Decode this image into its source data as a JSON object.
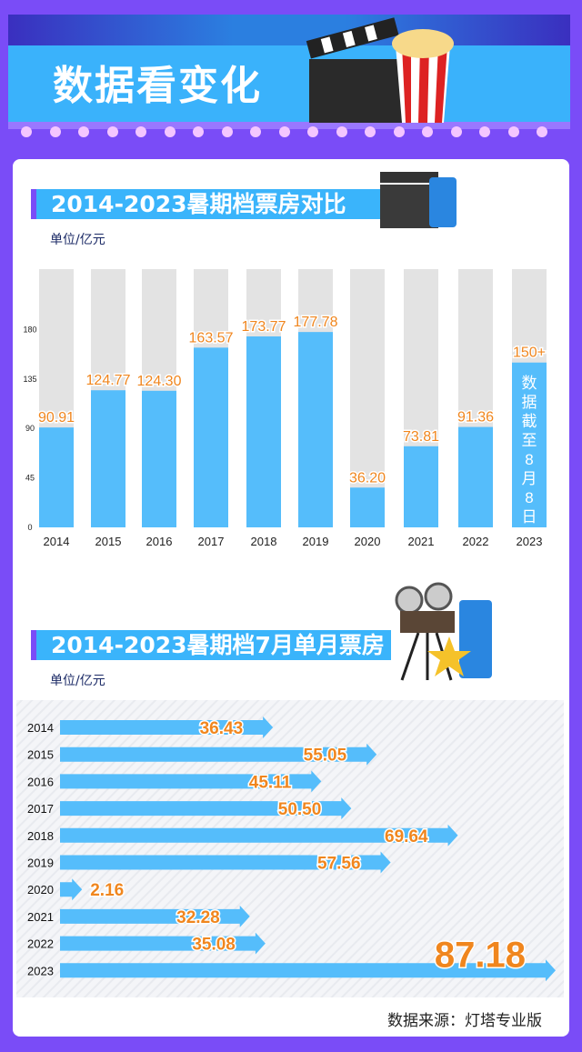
{
  "header": {
    "title": "数据看变化"
  },
  "colors": {
    "background": "#7a4cf7",
    "bar": "#55bdfb",
    "bar_bg": "#e3e3e3",
    "value_label": "#f0861e",
    "title_bar": "#3ab4fb"
  },
  "icons": [
    "clapperboard-icon",
    "popcorn-icon",
    "drink-cup-icon",
    "film-projector-icon",
    "star-icon"
  ],
  "chart_data": [
    {
      "type": "bar",
      "title": "2014-2023暑期档票房对比",
      "unit": "单位/亿元",
      "categories": [
        "2014",
        "2015",
        "2016",
        "2017",
        "2018",
        "2019",
        "2020",
        "2021",
        "2022",
        "2023"
      ],
      "values": [
        90.91,
        124.77,
        124.3,
        163.57,
        173.77,
        177.78,
        36.2,
        73.81,
        91.36,
        150
      ],
      "value_labels": [
        "90.91",
        "124.77",
        "124.30",
        "163.57",
        "173.77",
        "177.78",
        "36.20",
        "73.81",
        "91.36",
        "150+"
      ],
      "yticks": [
        "0",
        "45",
        "90",
        "135",
        "180"
      ],
      "ylim": [
        0,
        235
      ],
      "annotation": "数据截至8月8日",
      "grid": false
    },
    {
      "type": "bar",
      "orientation": "horizontal",
      "title": "2014-2023暑期档7月单月票房",
      "unit": "单位/亿元",
      "categories": [
        "2014",
        "2015",
        "2016",
        "2017",
        "2018",
        "2019",
        "2020",
        "2021",
        "2022",
        "2023"
      ],
      "values": [
        36.43,
        55.05,
        45.11,
        50.5,
        69.64,
        57.56,
        2.16,
        32.28,
        35.08,
        87.18
      ],
      "value_labels": [
        "36.43",
        "55.05",
        "45.11",
        "50.50",
        "69.64",
        "57.56",
        "2.16",
        "32.28",
        "35.08",
        "87.18"
      ]
    }
  ],
  "footer": {
    "source": "数据来源：灯塔专业版"
  }
}
